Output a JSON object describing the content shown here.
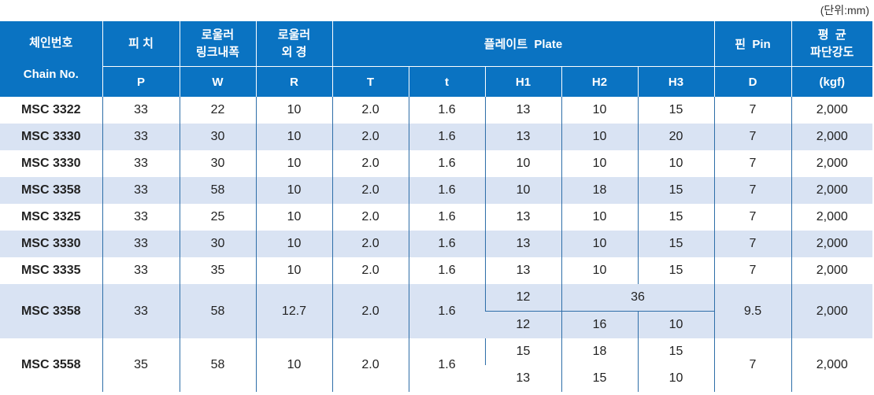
{
  "unit_note": "(단위:mm)",
  "header": {
    "chain_no_ko": "체인번호",
    "chain_no_en": "Chain No.",
    "pitch_ko": "피 치",
    "pitch_sym": "P",
    "roller_link_ko1": "로울러",
    "roller_link_ko2": "링크내폭",
    "roller_link_sym": "W",
    "roller_od_ko1": "로울러",
    "roller_od_ko2": "외 경",
    "roller_od_sym": "R",
    "plate": "플레이트  Plate",
    "plate_T": "T",
    "plate_t": "t",
    "plate_H1": "H1",
    "plate_H2": "H2",
    "plate_H3": "H3",
    "pin": "핀  Pin",
    "pin_sym": "D",
    "strength_ko1": "평  균",
    "strength_ko2": "파단강도",
    "strength_unit": "(kgf)"
  },
  "rows": [
    {
      "name": "MSC 3322",
      "P": "33",
      "W": "22",
      "R": "10",
      "T": "2.0",
      "t": "1.6",
      "H1": "13",
      "H2": "10",
      "H3": "15",
      "D": "7",
      "kgf": "2,000"
    },
    {
      "name": "MSC 3330",
      "P": "33",
      "W": "30",
      "R": "10",
      "T": "2.0",
      "t": "1.6",
      "H1": "13",
      "H2": "10",
      "H3": "20",
      "D": "7",
      "kgf": "2,000"
    },
    {
      "name": "MSC 3330",
      "P": "33",
      "W": "30",
      "R": "10",
      "T": "2.0",
      "t": "1.6",
      "H1": "10",
      "H2": "10",
      "H3": "10",
      "D": "7",
      "kgf": "2,000"
    },
    {
      "name": "MSC 3358",
      "P": "33",
      "W": "58",
      "R": "10",
      "T": "2.0",
      "t": "1.6",
      "H1": "10",
      "H2": "18",
      "H3": "15",
      "D": "7",
      "kgf": "2,000"
    },
    {
      "name": "MSC 3325",
      "P": "33",
      "W": "25",
      "R": "10",
      "T": "2.0",
      "t": "1.6",
      "H1": "13",
      "H2": "10",
      "H3": "15",
      "D": "7",
      "kgf": "2,000"
    },
    {
      "name": "MSC 3330",
      "P": "33",
      "W": "30",
      "R": "10",
      "T": "2.0",
      "t": "1.6",
      "H1": "13",
      "H2": "10",
      "H3": "15",
      "D": "7",
      "kgf": "2,000"
    },
    {
      "name": "MSC 3335",
      "P": "33",
      "W": "35",
      "R": "10",
      "T": "2.0",
      "t": "1.6",
      "H1": "13",
      "H2": "10",
      "H3": "15",
      "D": "7",
      "kgf": "2,000"
    }
  ],
  "special1": {
    "name": "MSC 3358",
    "P": "33",
    "W": "58",
    "R": "12.7",
    "T": "2.0",
    "t": "1.6",
    "H1_top": "12",
    "H23_top": "36",
    "H1_bottom": "12",
    "H2_bottom": "16",
    "H3_bottom": "10",
    "D": "9.5",
    "kgf": "2,000"
  },
  "special2": {
    "name": "MSC 3558",
    "P": "35",
    "W": "58",
    "R": "10",
    "T": "2.0",
    "t": "1.6",
    "H1_top": "15",
    "H2_top": "18",
    "H3_top": "15",
    "H1_bottom": "13",
    "H2_bottom": "15",
    "H3_bottom": "10",
    "D": "7",
    "kgf": "2,000"
  }
}
